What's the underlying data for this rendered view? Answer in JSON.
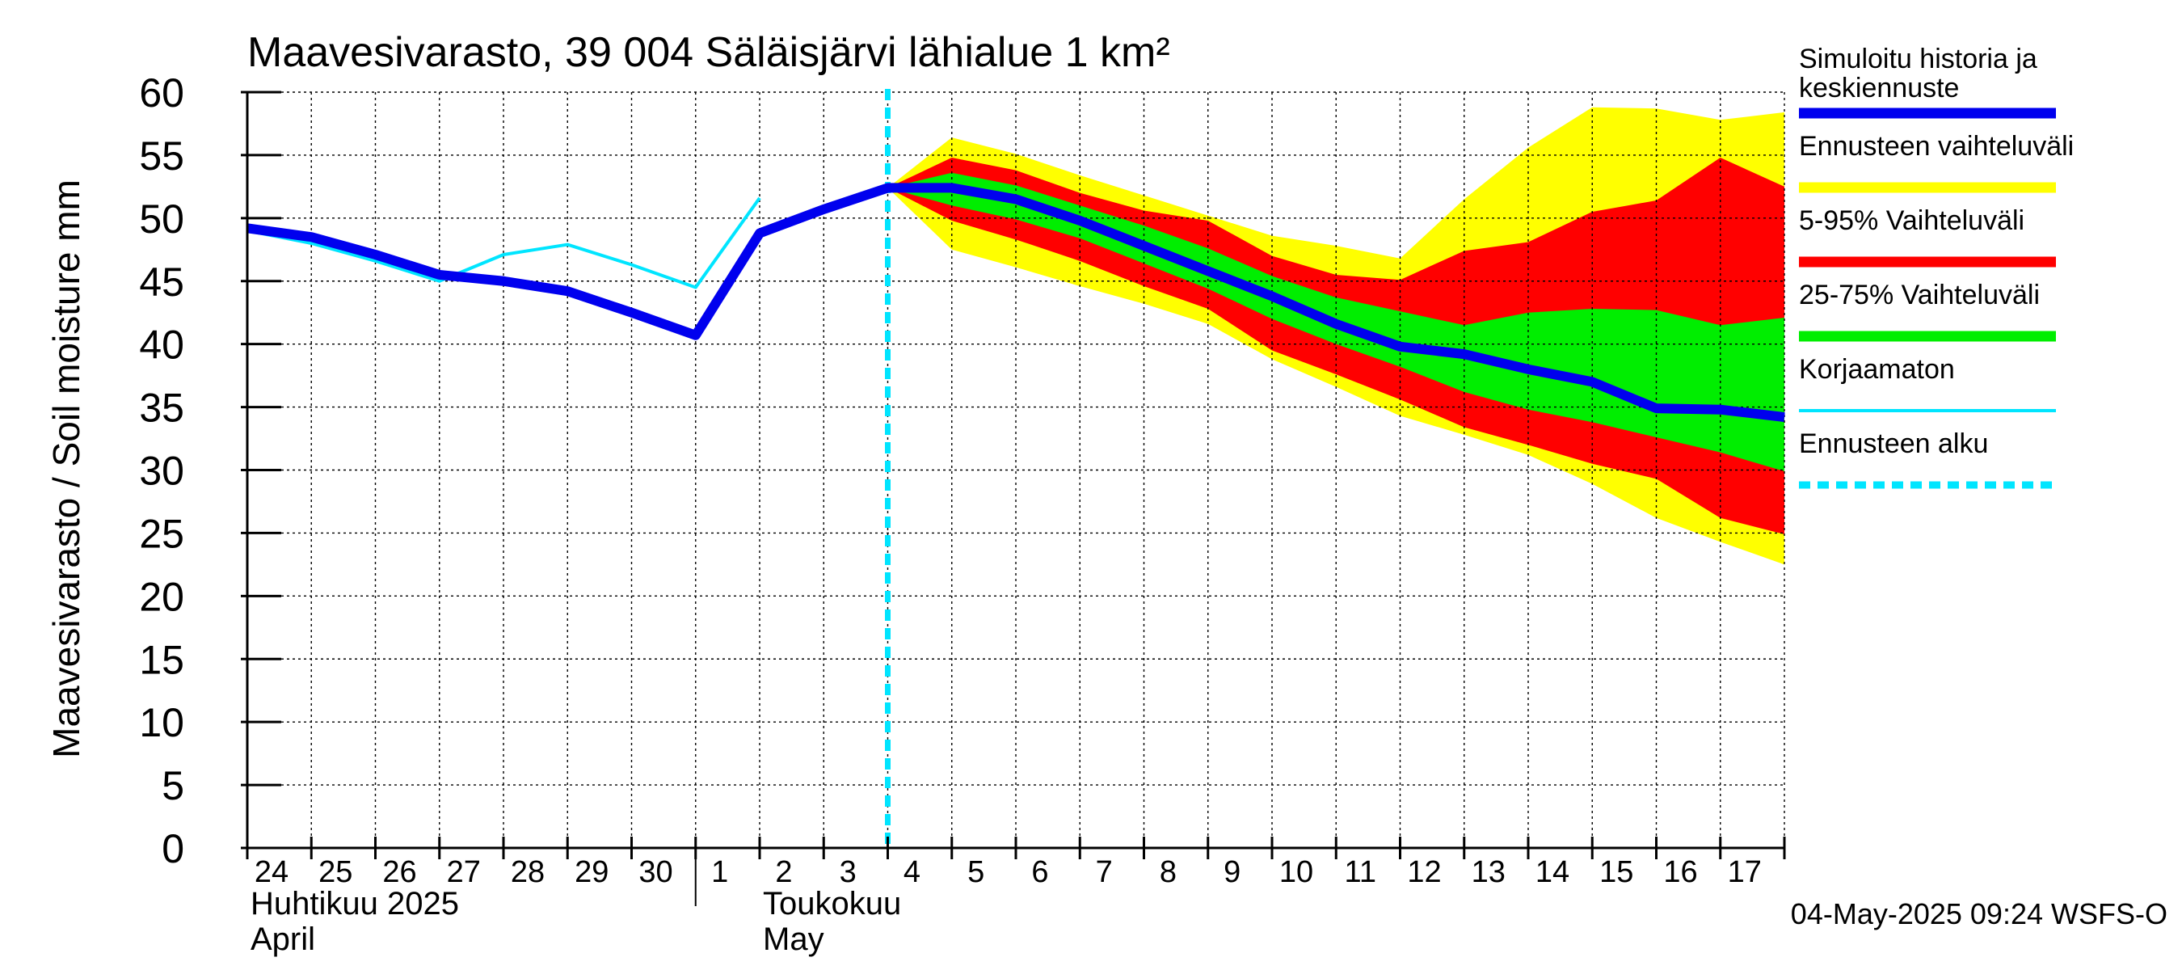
{
  "chart_data": {
    "type": "area",
    "title": "Maavesivarasto, 39 004 Säläisjärvi lähialue 1 km²",
    "ylabel": "Maavesivarasto / Soil moisture   mm",
    "ylim": [
      0,
      60
    ],
    "yticks": [
      0,
      5,
      10,
      15,
      20,
      25,
      30,
      35,
      40,
      45,
      50,
      55,
      60
    ],
    "xlim": [
      0,
      24
    ],
    "day_labels": [
      "24",
      "25",
      "26",
      "27",
      "28",
      "29",
      "30",
      "1",
      "2",
      "3",
      "4",
      "5",
      "6",
      "7",
      "8",
      "9",
      "10",
      "11",
      "12",
      "13",
      "14",
      "15",
      "16",
      "17"
    ],
    "month_labels": [
      {
        "line1": "Huhtikuu  2025",
        "line2": "April",
        "x": 0
      },
      {
        "line1": "Toukokuu",
        "line2": "May",
        "x": 8
      }
    ],
    "month_divider_x": 7,
    "forecast_start_x": 10,
    "footer": "04-May-2025 09:24 WSFS-O",
    "colors": {
      "yellow": "#ffff00",
      "red": "#ff0000",
      "green": "#00ee00",
      "blue": "#0000ee",
      "cyan": "#00e5ff",
      "grid": "#000000"
    },
    "legend": [
      {
        "line1": "Simuloitu historia ja",
        "line2": "keskiennuste",
        "color": "#0000ee",
        "style": "solid-thick"
      },
      {
        "line1": "Ennusteen vaihteluväli",
        "line2": "",
        "color": "#ffff00",
        "style": "solid-thick"
      },
      {
        "line1": "5-95% Vaihteluväli",
        "line2": "",
        "color": "#ff0000",
        "style": "solid-thick"
      },
      {
        "line1": "25-75% Vaihteluväli",
        "line2": "",
        "color": "#00ee00",
        "style": "solid-thick"
      },
      {
        "line1": "Korjaamaton",
        "line2": "",
        "color": "#00e5ff",
        "style": "solid-thin"
      },
      {
        "line1": "Ennusteen alku",
        "line2": "",
        "color": "#00e5ff",
        "style": "dashed"
      }
    ],
    "series": [
      {
        "name": "Simuloitu historia ja keskiennuste",
        "x": [
          0,
          1,
          2,
          3,
          4,
          5,
          6,
          7,
          8,
          9,
          10,
          11,
          12,
          13,
          14,
          15,
          16,
          17,
          18,
          19,
          20,
          21,
          22,
          23,
          24
        ],
        "values": [
          49.2,
          48.5,
          47.1,
          45.5,
          45.0,
          44.2,
          42.5,
          40.7,
          48.8,
          50.7,
          52.4,
          52.4,
          51.5,
          49.8,
          47.8,
          45.8,
          43.8,
          41.6,
          39.8,
          39.2,
          38.0,
          37.0,
          34.9,
          34.8,
          34.2
        ]
      },
      {
        "name": "Korjaamaton",
        "x": [
          0,
          1,
          2,
          3,
          4,
          5,
          6,
          7,
          8
        ],
        "values": [
          49.0,
          48.0,
          46.6,
          45.0,
          47.1,
          47.9,
          46.3,
          44.5,
          51.6
        ]
      },
      {
        "name": "Ennusteen vaihteluväli",
        "x": [
          10,
          11,
          12,
          13,
          14,
          15,
          16,
          17,
          18,
          19,
          20,
          21,
          22,
          23,
          24
        ],
        "upper": [
          52.4,
          56.4,
          55.1,
          53.4,
          51.8,
          50.2,
          48.6,
          47.8,
          46.8,
          51.5,
          55.6,
          58.8,
          58.7,
          57.8,
          58.4
        ],
        "lower": [
          52.4,
          47.5,
          46.1,
          44.6,
          43.2,
          41.6,
          38.8,
          36.6,
          34.3,
          32.8,
          31.2,
          28.9,
          26.2,
          24.3,
          22.5
        ]
      },
      {
        "name": "5-95% Vaihteluväli",
        "x": [
          10,
          11,
          12,
          13,
          14,
          15,
          16,
          17,
          18,
          19,
          20,
          21,
          22,
          23,
          24
        ],
        "upper": [
          52.4,
          54.8,
          53.8,
          52.0,
          50.6,
          49.8,
          47.0,
          45.5,
          45.1,
          47.4,
          48.1,
          50.5,
          51.4,
          54.8,
          52.5
        ],
        "lower": [
          52.4,
          49.8,
          48.3,
          46.6,
          44.6,
          42.8,
          39.5,
          37.6,
          35.6,
          33.4,
          32.0,
          30.5,
          29.3,
          26.2,
          24.9
        ]
      },
      {
        "name": "25-75% Vaihteluväli",
        "x": [
          10,
          11,
          12,
          13,
          14,
          15,
          16,
          17,
          18,
          19,
          20,
          21,
          22,
          23,
          24
        ],
        "upper": [
          52.4,
          53.6,
          52.6,
          51.0,
          49.4,
          47.6,
          45.4,
          43.7,
          42.6,
          41.5,
          42.5,
          42.8,
          42.7,
          41.5,
          42.1
        ],
        "lower": [
          52.4,
          51.0,
          49.9,
          48.4,
          46.4,
          44.4,
          42.0,
          40.0,
          38.2,
          36.2,
          34.8,
          33.8,
          32.6,
          31.4,
          29.9
        ]
      }
    ]
  }
}
